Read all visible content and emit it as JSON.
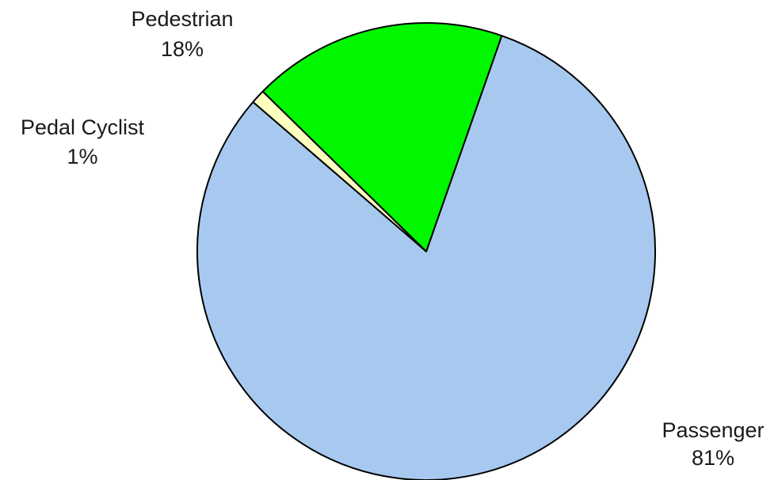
{
  "chart_data": {
    "type": "pie",
    "title": "",
    "slices": [
      {
        "label": "Passenger",
        "percent_label": "81%",
        "value": 81,
        "color": "#a8c9ef"
      },
      {
        "label": "Pedal Cyclist",
        "percent_label": "1%",
        "value": 1,
        "color": "#ffffc0"
      },
      {
        "label": "Pedestrian",
        "percent_label": "18%",
        "value": 18,
        "color": "#00f700"
      }
    ],
    "slice_border_color": "#000000"
  }
}
